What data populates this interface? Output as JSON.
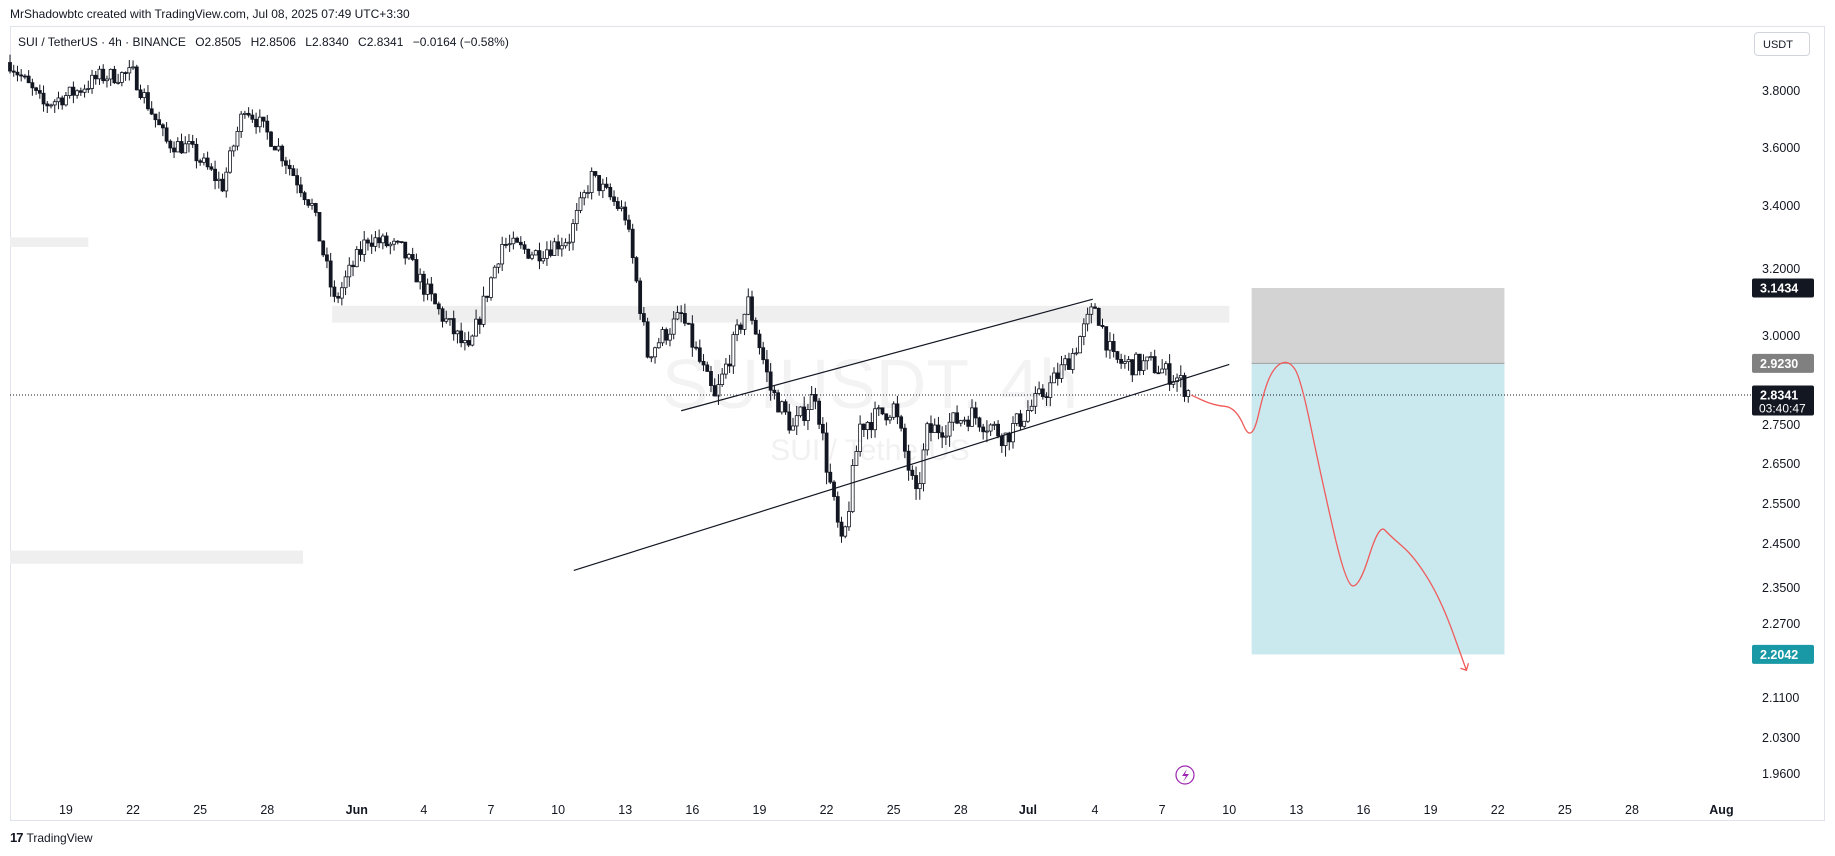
{
  "header": {
    "attribution": "MrShadowbtc created with TradingView.com, Jul 08, 2025 07:49 UTC+3:30"
  },
  "legend": {
    "symbol": "SUI / TetherUS · 4h · BINANCE",
    "open": "O2.8505",
    "high": "H2.8506",
    "low": "L2.8340",
    "close": "C2.8341",
    "change": "−0.0164 (−0.58%)"
  },
  "currency_button": "USDT",
  "watermark": {
    "line1": "SUIUSDT, 4h",
    "line2": "SUI / TetherUS"
  },
  "footer": {
    "brand_mark": "17",
    "brand_name": "TradingView"
  },
  "colors": {
    "candle": "#131722",
    "trendline": "#131722",
    "projection": "#f05b5b",
    "target_zone": "#c9e9ee",
    "stop_zone": "#d3d3d3",
    "last_price_tag": "#131722",
    "stop_tag": "#808080",
    "target_tag": "#1999a5",
    "supply_zone": "#efefef"
  },
  "chart_data": {
    "type": "candlestick",
    "title": "",
    "ylim": [
      1.93,
      3.95
    ],
    "y_ticks": [
      "3.8000",
      "3.6000",
      "3.4000",
      "3.2000",
      "3.0000",
      "2.7500",
      "2.6500",
      "2.5500",
      "2.4500",
      "2.3500",
      "2.2700",
      "2.1100",
      "2.0300",
      "1.9600"
    ],
    "y_tick_values": [
      3.8,
      3.6,
      3.4,
      3.2,
      3.0,
      2.75,
      2.65,
      2.55,
      2.45,
      2.35,
      2.27,
      2.11,
      2.03,
      1.96
    ],
    "x_ticks": [
      "19",
      "22",
      "25",
      "28",
      "Jun",
      "4",
      "7",
      "10",
      "13",
      "16",
      "19",
      "22",
      "25",
      "28",
      "Jul",
      "4",
      "7",
      "10",
      "13",
      "16",
      "19",
      "22",
      "25",
      "28",
      "Aug"
    ],
    "x_tick_days": [
      0,
      3,
      6,
      9,
      13,
      16,
      19,
      22,
      25,
      28,
      31,
      34,
      37,
      40,
      43,
      46,
      49,
      52,
      55,
      58,
      61,
      64,
      67,
      70,
      74
    ],
    "x_range_days": [
      -2.5,
      75.5
    ],
    "x_origin_note": "",
    "candle_path_days": [
      -2.5,
      -1,
      0.5,
      1.5,
      3,
      4.5,
      5.5,
      7,
      8,
      9.5,
      11,
      12,
      13.5,
      15,
      16.5,
      18,
      19.5,
      21,
      22.5,
      23.5,
      25,
      26,
      27.5,
      29,
      30.5,
      31.5,
      32.5,
      33.5,
      34,
      34.7,
      35.5,
      37,
      38,
      38.5,
      40.5,
      42,
      44,
      45,
      46,
      46.8,
      47.5,
      48.5,
      49.7,
      50.3
    ],
    "candle_path_closes": [
      3.9,
      3.75,
      3.8,
      3.85,
      3.86,
      3.62,
      3.6,
      3.47,
      3.75,
      3.6,
      3.4,
      3.1,
      3.3,
      3.26,
      3.09,
      2.95,
      3.28,
      3.25,
      3.3,
      3.5,
      3.37,
      2.95,
      3.06,
      2.82,
      3.1,
      2.85,
      2.74,
      2.84,
      2.65,
      2.43,
      2.75,
      2.8,
      2.56,
      2.73,
      2.78,
      2.72,
      2.86,
      2.95,
      3.09,
      2.93,
      2.92,
      2.92,
      2.88,
      2.834
    ],
    "last_price": 2.8341,
    "last_price_label": "2.8341",
    "countdown": "03:40:47",
    "support_trendline": {
      "from": [
        22.7,
        2.39
      ],
      "to": [
        52.0,
        2.92
      ]
    },
    "channel_upper_line": {
      "from": [
        27.5,
        2.79
      ],
      "to": [
        45.9,
        3.11
      ]
    },
    "short_position": {
      "entry": 2.923,
      "entry_label": "2.9230",
      "stop": 3.1434,
      "stop_label": "3.1434",
      "target": 2.2042,
      "target_label": "2.2042",
      "x_start_day": 53.0,
      "x_end_day": 64.3
    },
    "projection_path": [
      [
        50.3,
        2.834
      ],
      [
        51.3,
        2.805
      ],
      [
        52.3,
        2.8
      ],
      [
        53.0,
        2.7
      ],
      [
        53.6,
        2.86
      ],
      [
        54.1,
        2.92
      ],
      [
        54.7,
        2.93
      ],
      [
        55.2,
        2.88
      ],
      [
        56.1,
        2.62
      ],
      [
        57.2,
        2.36
      ],
      [
        57.8,
        2.35
      ],
      [
        58.7,
        2.5
      ],
      [
        59.2,
        2.47
      ],
      [
        60.3,
        2.42
      ],
      [
        61.5,
        2.32
      ],
      [
        62.6,
        2.17
      ]
    ],
    "supply_zones": [
      {
        "from_day": -2.5,
        "to_day": 1.0,
        "low": 3.27,
        "high": 3.3
      },
      {
        "from_day": 11.9,
        "to_day": 52.0,
        "low": 3.04,
        "high": 3.09
      },
      {
        "from_day": -2.5,
        "to_day": 10.6,
        "low": 2.405,
        "high": 2.435
      }
    ],
    "grid": false,
    "legend_position": "top-left"
  }
}
